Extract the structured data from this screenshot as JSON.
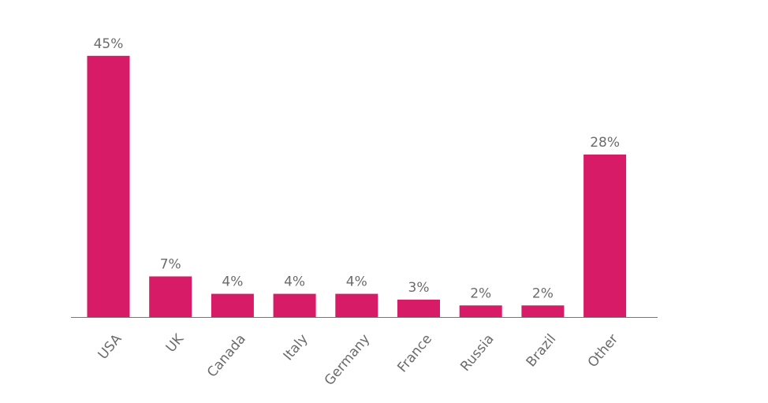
{
  "chart_data": {
    "type": "bar",
    "categories": [
      "USA",
      "UK",
      "Canada",
      "Italy",
      "Germany",
      "France",
      "Russia",
      "Brazil",
      "Other"
    ],
    "values": [
      45,
      7,
      4,
      4,
      4,
      3,
      2,
      2,
      28
    ],
    "value_labels": [
      "45%",
      "7%",
      "4%",
      "4%",
      "4%",
      "3%",
      "2%",
      "2%",
      "28%"
    ],
    "color": "#d81b67"
  }
}
